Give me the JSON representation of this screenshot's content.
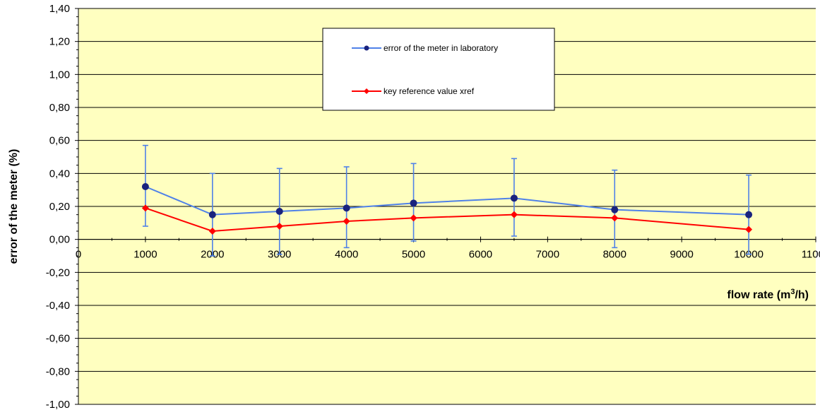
{
  "chart_data": {
    "type": "line",
    "xlabel_main": "flow rate (m",
    "xlabel_sup": "3",
    "xlabel_end": "/h)",
    "ylabel": "error of the meter (%)",
    "xlim": [
      0,
      11000
    ],
    "ylim": [
      -1.0,
      1.4
    ],
    "x_ticks": [
      0,
      1000,
      2000,
      3000,
      4000,
      5000,
      6000,
      7000,
      8000,
      9000,
      10000,
      11000
    ],
    "x_tick_labels": [
      "0",
      "1000",
      "2000",
      "3000",
      "4000",
      "5000",
      "6000",
      "7000",
      "8000",
      "9000",
      "10000",
      "11000"
    ],
    "y_ticks": [
      -1.0,
      -0.8,
      -0.6,
      -0.4,
      -0.2,
      0.0,
      0.2,
      0.4,
      0.6,
      0.8,
      1.0,
      1.2,
      1.4
    ],
    "y_tick_labels": [
      "-1,00",
      "-0,80",
      "-0,60",
      "-0,40",
      "-0,20",
      "0,00",
      "0,20",
      "0,40",
      "0,60",
      "0,80",
      "1,00",
      "1,20",
      "1,40"
    ],
    "grid": "horizontal",
    "plot_background": "#ffffc0",
    "legend_position": "top-center",
    "series": [
      {
        "name": "error of the meter in laboratory",
        "color": "#4f81e8",
        "marker_color": "#1a237e",
        "marker": "circle",
        "x": [
          1000,
          2000,
          3000,
          4000,
          5000,
          6500,
          8000,
          10000
        ],
        "y": [
          0.32,
          0.15,
          0.17,
          0.19,
          0.22,
          0.25,
          0.18,
          0.15
        ],
        "error_upper": [
          0.57,
          0.4,
          0.43,
          0.44,
          0.46,
          0.49,
          0.42,
          0.39
        ],
        "error_lower": [
          0.08,
          -0.1,
          -0.09,
          -0.05,
          -0.01,
          0.02,
          -0.05,
          -0.09
        ]
      },
      {
        "name": "key reference value xref",
        "color": "#ff0000",
        "marker_color": "#ff0000",
        "marker": "diamond",
        "x": [
          1000,
          2000,
          3000,
          4000,
          5000,
          6500,
          8000,
          10000
        ],
        "y": [
          0.19,
          0.05,
          0.08,
          0.11,
          0.13,
          0.15,
          0.13,
          0.06
        ]
      }
    ]
  }
}
